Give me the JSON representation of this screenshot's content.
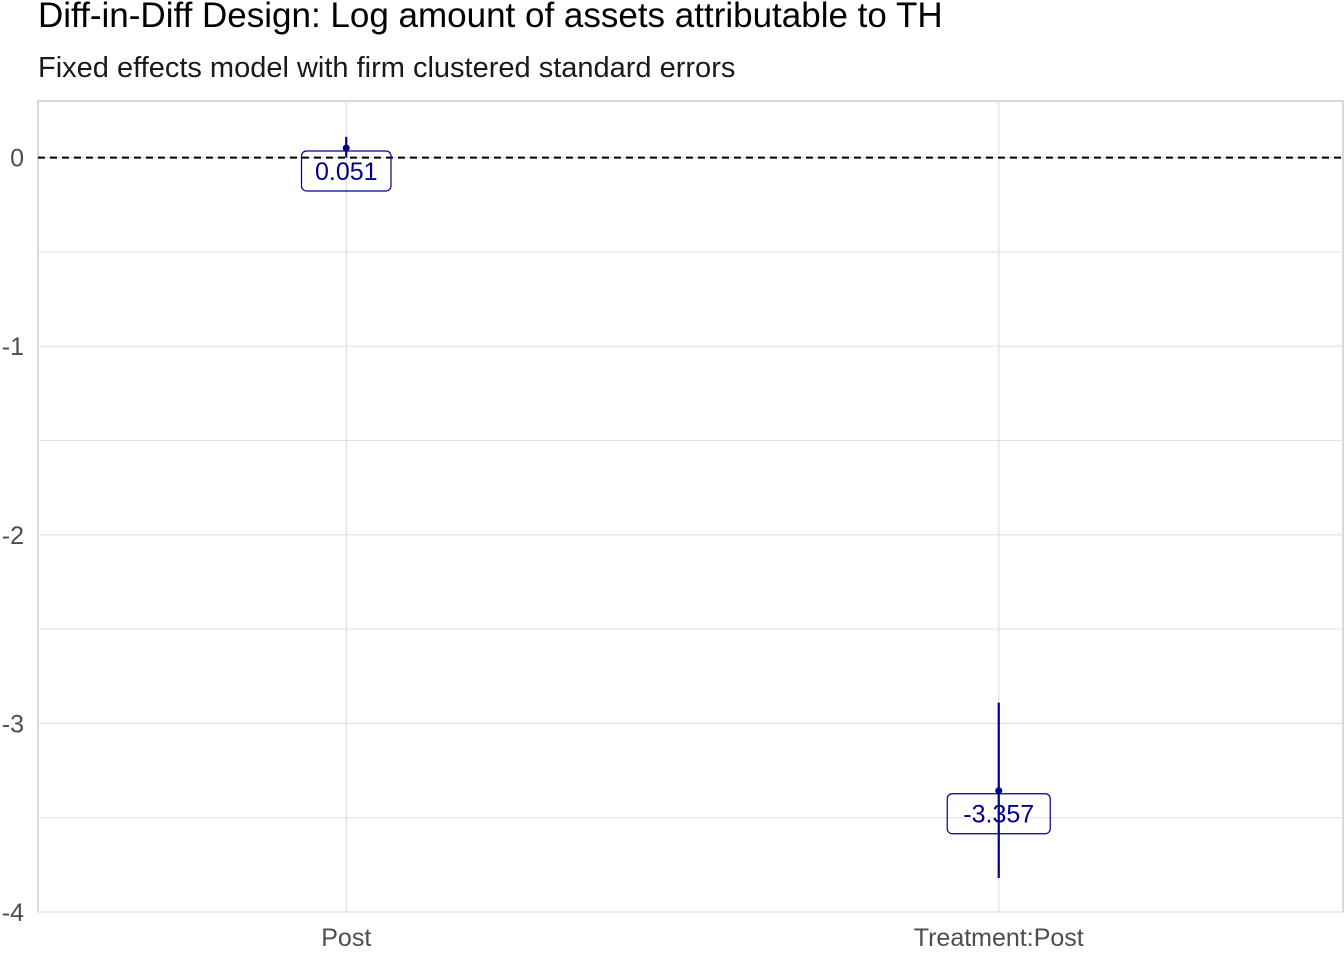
{
  "chart_data": {
    "type": "scatter",
    "title": "Diff-in-Diff Design: Log amount of assets attributable to TH",
    "subtitle": "Fixed effects model with firm clustered standard errors",
    "xlabel": "",
    "ylabel": "",
    "categories": [
      "Post",
      "Treatment:Post"
    ],
    "series": [
      {
        "estimates": [
          0.051,
          -3.357
        ],
        "ci_low": [
          0.0,
          -3.82
        ],
        "ci_high": [
          0.11,
          -2.89
        ],
        "labels": [
          "0.051",
          "-3.357"
        ]
      }
    ],
    "ylim": [
      -4.0,
      0.3
    ],
    "y_ticks": [
      0,
      -1,
      -2,
      -3,
      -4
    ],
    "y_tick_labels": [
      "0",
      "-1",
      "-2",
      "-3",
      "-4"
    ],
    "reference_line": {
      "value": 0,
      "style": "dashed"
    },
    "grid": true,
    "legend": "none",
    "colors": {
      "point": "#00008b",
      "reference_line": "#000000",
      "grid": "#e0e0e0",
      "axis_text": "#4d4d4d"
    }
  }
}
